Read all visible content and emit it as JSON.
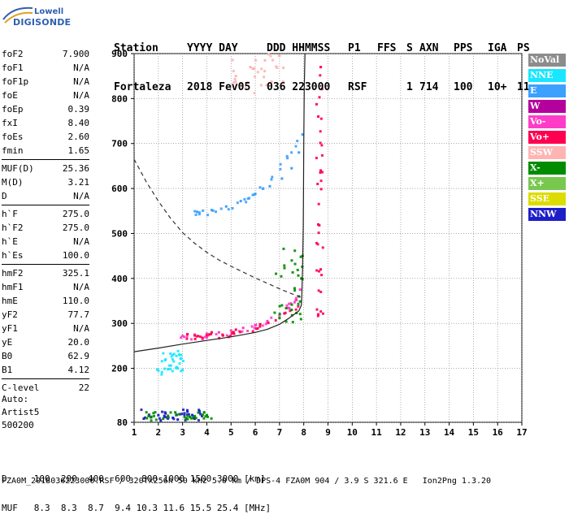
{
  "logo": {
    "line1": "Lowell",
    "line2": "DIGISONDE"
  },
  "header": {
    "labels": [
      "Station",
      "YYYY DAY",
      "DDD HHMMSS",
      "P1",
      "FFS",
      "S",
      "AXN",
      "PPS",
      "IGA",
      "PS"
    ],
    "values": [
      "Fortaleza",
      "2018 Fev05",
      "036 223000",
      "RSF",
      "",
      "1",
      "714",
      "100",
      "10+",
      "11"
    ]
  },
  "params": [
    {
      "name": "foF2",
      "value": "7.900"
    },
    {
      "name": "foF1",
      "value": "N/A"
    },
    {
      "name": "foF1p",
      "value": "N/A"
    },
    {
      "name": "foE",
      "value": "N/A"
    },
    {
      "name": "foEp",
      "value": "0.39"
    },
    {
      "name": "fxI",
      "value": "8.40"
    },
    {
      "name": "foEs",
      "value": "2.60"
    },
    {
      "name": "fmin",
      "value": "1.65"
    },
    {
      "sep": true
    },
    {
      "name": "MUF(D)",
      "value": "25.36"
    },
    {
      "name": "M(D)",
      "value": "3.21"
    },
    {
      "name": "D",
      "value": "N/A"
    },
    {
      "sep": true
    },
    {
      "name": "h`F",
      "value": "275.0"
    },
    {
      "name": "h`F2",
      "value": "275.0"
    },
    {
      "name": "h`E",
      "value": "N/A"
    },
    {
      "name": "h`Es",
      "value": "100.0"
    },
    {
      "sep": true
    },
    {
      "name": "hmF2",
      "value": "325.1"
    },
    {
      "name": "hmF1",
      "value": "N/A"
    },
    {
      "name": "hmE",
      "value": "110.0"
    },
    {
      "name": "yF2",
      "value": "77.7"
    },
    {
      "name": "yF1",
      "value": "N/A"
    },
    {
      "name": "yE",
      "value": "20.0"
    },
    {
      "name": "B0",
      "value": "62.9"
    },
    {
      "name": "B1",
      "value": "4.12"
    },
    {
      "sep": true
    },
    {
      "name": "C-level",
      "value": "22"
    }
  ],
  "auto": {
    "line1": "Auto:",
    "line2": "Artist5",
    "line3": "500200"
  },
  "legend": [
    {
      "label": "NoVal",
      "color": "#8c8c8c"
    },
    {
      "label": "NNE",
      "color": "#19e6ff"
    },
    {
      "label": "E",
      "color": "#3ca0ff"
    },
    {
      "label": "W",
      "color": "#b4009c"
    },
    {
      "label": "Vo-",
      "color": "#ff3cc8"
    },
    {
      "label": "Vo+",
      "color": "#ff0050"
    },
    {
      "label": "SSW",
      "color": "#ffb4b4"
    },
    {
      "label": "X-",
      "color": "#008c00"
    },
    {
      "label": "X+",
      "color": "#78c850"
    },
    {
      "label": "SSE",
      "color": "#dcdc00"
    },
    {
      "label": "NNW",
      "color": "#1e1ec8"
    }
  ],
  "bottom": {
    "d_line": "D     100  200  400  600  800 1000 1500 3000 [km]",
    "muf_line": "MUF   8.3  8.3  8.7  9.4 10.3 11.6 15.5 25.4 [MHz]"
  },
  "footer": "FZA0M_2018036223000.RSF / 320fx256h 50 kHz 5.0 km / DPS-4 FZA0M 904 / 3.9 S 321.6 E   Ion2Png 1.3.20",
  "chart_data": {
    "type": "scatter",
    "xlim": [
      1,
      17
    ],
    "ylim": [
      80,
      900
    ],
    "x_ticks": [
      1,
      2,
      3,
      4,
      5,
      6,
      7,
      8,
      9,
      10,
      11,
      12,
      13,
      14,
      15,
      16,
      17
    ],
    "y_ticks": [
      80,
      200,
      300,
      400,
      500,
      600,
      700,
      800,
      900
    ],
    "grid": true,
    "series": [
      {
        "color": "#1e1ec8",
        "cluster": [
          [
            1.3,
            3.9
          ],
          [
            83,
            110
          ]
        ],
        "points": [
          [
            1.4,
            88
          ],
          [
            1.7,
            92
          ],
          [
            2.0,
            96
          ],
          [
            2.3,
            100
          ],
          [
            2.6,
            90
          ],
          [
            2.9,
            98
          ],
          [
            3.2,
            104
          ],
          [
            3.5,
            88
          ],
          [
            3.8,
            94
          ],
          [
            2.1,
            84
          ],
          [
            2.8,
            86
          ],
          [
            3.4,
            96
          ]
        ]
      },
      {
        "color": "#008c00",
        "cluster": [
          [
            1.5,
            4.2
          ],
          [
            84,
            104
          ]
        ],
        "points": [
          [
            1.6,
            94
          ],
          [
            2.2,
            88
          ],
          [
            2.7,
            102
          ],
          [
            3.3,
            92
          ],
          [
            4.0,
            96
          ]
        ]
      },
      {
        "color": "#ff3cc8",
        "cluster": [
          [
            2.8,
            7.9
          ],
          [
            268,
            365
          ]
        ],
        "points": [
          [
            3.0,
            272
          ],
          [
            3.5,
            275
          ],
          [
            4.0,
            277
          ],
          [
            4.5,
            280
          ],
          [
            5.0,
            284
          ],
          [
            5.5,
            290
          ],
          [
            6.0,
            296
          ],
          [
            6.5,
            305
          ],
          [
            7.0,
            318
          ],
          [
            7.4,
            334
          ],
          [
            7.7,
            352
          ],
          [
            7.85,
            375
          ]
        ]
      },
      {
        "color": "#ff0050",
        "cluster": [
          [
            3.0,
            7.8
          ],
          [
            270,
            340
          ]
        ],
        "points": [
          [
            3.2,
            276
          ],
          [
            4.2,
            280
          ],
          [
            5.2,
            286
          ],
          [
            6.2,
            298
          ],
          [
            7.2,
            322
          ]
        ]
      },
      {
        "color": "#008c00",
        "cluster": [
          [
            6.8,
            8.0
          ],
          [
            300,
            480
          ]
        ],
        "points": [
          [
            7.0,
            312
          ],
          [
            7.5,
            330
          ],
          [
            7.8,
            360
          ],
          [
            7.9,
            400
          ],
          [
            7.95,
            450
          ]
        ]
      },
      {
        "color": "#3ca0ff",
        "cluster": [
          [
            3.5,
            7.9
          ],
          [
            545,
            720
          ]
        ],
        "points": [
          [
            3.6,
            548
          ],
          [
            4.2,
            552
          ],
          [
            4.8,
            560
          ],
          [
            5.4,
            572
          ],
          [
            6.0,
            588
          ],
          [
            6.6,
            605
          ],
          [
            7.1,
            622
          ],
          [
            7.5,
            645
          ],
          [
            7.8,
            680
          ],
          [
            7.95,
            720
          ]
        ]
      },
      {
        "color": "#19e6ff",
        "cluster": [
          [
            1.9,
            3.1
          ],
          [
            185,
            240
          ]
        ],
        "points": [
          [
            2.0,
            195
          ],
          [
            2.4,
            198
          ],
          [
            2.8,
            200
          ],
          [
            3.0,
            196
          ]
        ]
      },
      {
        "color": "#ff0050",
        "cluster": [
          [
            8.5,
            8.8
          ],
          [
            300,
            880
          ]
        ],
        "points": [
          [
            8.6,
            320
          ],
          [
            8.7,
            420
          ],
          [
            8.6,
            520
          ],
          [
            8.7,
            640
          ],
          [
            8.6,
            760
          ],
          [
            8.7,
            870
          ]
        ]
      },
      {
        "color": "#ffb4b4",
        "cluster": [
          [
            5.0,
            7.2
          ],
          [
            810,
            900
          ]
        ],
        "points": [
          [
            5.2,
            850
          ],
          [
            5.8,
            870
          ],
          [
            6.4,
            885
          ],
          [
            7.0,
            895
          ]
        ]
      }
    ],
    "curves": [
      {
        "style": "solid",
        "points": [
          [
            1.0,
            237
          ],
          [
            2.0,
            245
          ],
          [
            3.0,
            254
          ],
          [
            4.0,
            262
          ],
          [
            5.0,
            270
          ],
          [
            6.0,
            280
          ],
          [
            6.5,
            287
          ],
          [
            7.0,
            298
          ],
          [
            7.4,
            312
          ],
          [
            7.8,
            328
          ],
          [
            7.9,
            340
          ],
          [
            7.92,
            360
          ],
          [
            7.95,
            420
          ],
          [
            7.98,
            520
          ],
          [
            7.99,
            600
          ],
          [
            8.0,
            700
          ],
          [
            8.02,
            820
          ],
          [
            8.05,
            900
          ]
        ]
      },
      {
        "style": "dashed",
        "points": [
          [
            1.0,
            665
          ],
          [
            1.5,
            615
          ],
          [
            2.0,
            572
          ],
          [
            2.5,
            534
          ],
          [
            3.0,
            502
          ],
          [
            3.5,
            478
          ],
          [
            4.0,
            458
          ],
          [
            4.5,
            441
          ],
          [
            5.0,
            427
          ],
          [
            5.5,
            414
          ],
          [
            6.0,
            401
          ],
          [
            6.5,
            389
          ],
          [
            7.0,
            377
          ],
          [
            7.5,
            366
          ],
          [
            7.9,
            358
          ]
        ]
      }
    ]
  }
}
